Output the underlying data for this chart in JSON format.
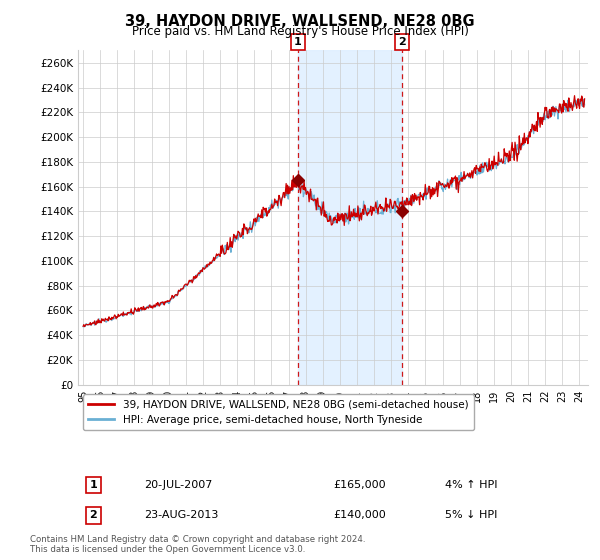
{
  "title": "39, HAYDON DRIVE, WALLSEND, NE28 0BG",
  "subtitle": "Price paid vs. HM Land Registry's House Price Index (HPI)",
  "ylabel_ticks": [
    "£0",
    "£20K",
    "£40K",
    "£60K",
    "£80K",
    "£100K",
    "£120K",
    "£140K",
    "£160K",
    "£180K",
    "£200K",
    "£220K",
    "£240K",
    "£260K"
  ],
  "ytick_values": [
    0,
    20000,
    40000,
    60000,
    80000,
    100000,
    120000,
    140000,
    160000,
    180000,
    200000,
    220000,
    240000,
    260000
  ],
  "ylim": [
    0,
    270000
  ],
  "legend_line1": "39, HAYDON DRIVE, WALLSEND, NE28 0BG (semi-detached house)",
  "legend_line2": "HPI: Average price, semi-detached house, North Tyneside",
  "annotation1_label": "1",
  "annotation1_date": "20-JUL-2007",
  "annotation1_price": "£165,000",
  "annotation1_hpi": "4% ↑ HPI",
  "annotation1_year": 2007.55,
  "annotation1_value": 165000,
  "annotation2_label": "2",
  "annotation2_date": "23-AUG-2013",
  "annotation2_price": "£140,000",
  "annotation2_hpi": "5% ↓ HPI",
  "annotation2_year": 2013.64,
  "annotation2_value": 140000,
  "footer": "Contains HM Land Registry data © Crown copyright and database right 2024.\nThis data is licensed under the Open Government Licence v3.0.",
  "hpi_color": "#6ab0d4",
  "price_color": "#cc0000",
  "marker_color": "#8b0000",
  "shade_color": "#ddeeff",
  "background_color": "#ffffff",
  "grid_color": "#cccccc",
  "xlim_min": 1994.7,
  "xlim_max": 2024.5
}
